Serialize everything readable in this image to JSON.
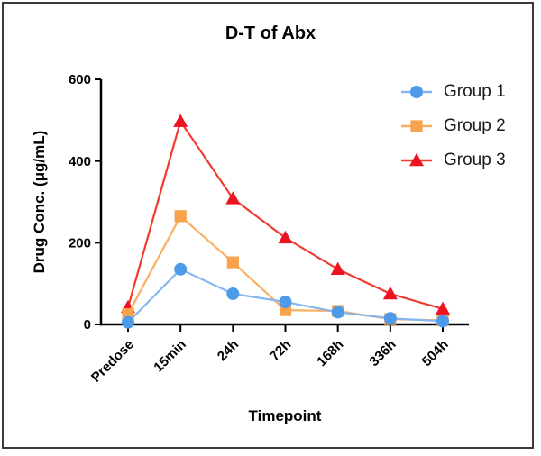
{
  "chart_data": {
    "type": "line",
    "title": "D-T of Abx",
    "xlabel": "Timepoint",
    "ylabel": "Drug Conc. (μg/mL)",
    "categories": [
      "Predose",
      "15min",
      "24h",
      "72h",
      "168h",
      "336h",
      "504h"
    ],
    "yticks": [
      0,
      200,
      400,
      600
    ],
    "ylim": [
      0,
      600
    ],
    "grid": false,
    "legend_position": "inside-top-right",
    "axis_color": "#000000",
    "frame_color": "#3a3a3a",
    "series": [
      {
        "name": "Group 1",
        "marker": "circle",
        "marker_color": "#4d9be8",
        "line_color": "#85b6ef",
        "values": [
          5,
          135,
          75,
          55,
          30,
          15,
          8
        ]
      },
      {
        "name": "Group 2",
        "marker": "square",
        "marker_color": "#f9a24c",
        "line_color": "#faae62",
        "values": [
          25,
          265,
          152,
          35,
          33,
          13,
          10
        ]
      },
      {
        "name": "Group 3",
        "marker": "triangle",
        "marker_color": "#ec1420",
        "line_color": "#f23a2e",
        "values": [
          42,
          497,
          308,
          212,
          135,
          75,
          38
        ]
      }
    ]
  }
}
